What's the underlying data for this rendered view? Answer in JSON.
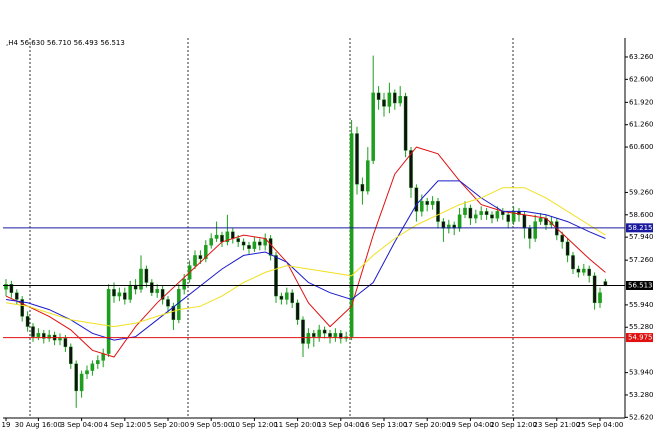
{
  "chart_data": {
    "type": "candlestick",
    "title": ",H4  56.630 56.710 56.493 56.513",
    "categories": [
      "19",
      null,
      null,
      null,
      null,
      null,
      "30 Aug 16:00",
      null,
      null,
      null,
      null,
      null,
      null,
      null,
      "3 Sep 04:00",
      null,
      null,
      null,
      null,
      null,
      null,
      null,
      "4 Sep 12:00",
      null,
      null,
      null,
      null,
      null,
      null,
      null,
      "5 Sep 20:00",
      null,
      null,
      null,
      null,
      null,
      null,
      null,
      "9 Sep 05:00",
      null,
      null,
      null,
      null,
      null,
      null,
      null,
      "10 Sep 12:00",
      null,
      null,
      null,
      null,
      null,
      null,
      null,
      "11 Sep 20:00",
      null,
      null,
      null,
      null,
      null,
      null,
      null,
      "13 Sep 04:00",
      null,
      null,
      null,
      null,
      null,
      null,
      null,
      "16 Sep 13:00",
      null,
      null,
      null,
      null,
      null,
      null,
      null,
      "17 Sep 20:00",
      null,
      null,
      null,
      null,
      null,
      null,
      null,
      "19 Sep 04:00",
      null,
      null,
      null,
      null,
      null,
      null,
      null,
      "20 Sep 12:00",
      null,
      null,
      null,
      null,
      null,
      null,
      null,
      "23 Sep 21:00",
      null,
      null,
      null,
      null,
      null,
      null,
      null,
      "25 Sep 04:00",
      null
    ],
    "open": [
      56.4,
      56.55,
      56.3,
      56.1,
      55.6,
      55.3,
      55.0,
      55.1,
      54.95,
      55.05,
      54.9,
      54.95,
      54.7,
      54.2,
      53.4,
      53.9,
      54.0,
      54.2,
      54.3,
      54.5,
      56.4,
      56.2,
      56.3,
      56.1,
      56.5,
      56.4,
      57.0,
      56.6,
      56.3,
      56.4,
      56.1,
      55.9,
      55.5,
      56.4,
      56.7,
      57.1,
      57.4,
      57.3,
      57.7,
      57.9,
      58.0,
      57.8,
      58.1,
      57.9,
      57.8,
      57.7,
      57.6,
      57.8,
      57.7,
      57.9,
      57.4,
      56.2,
      56.1,
      56.3,
      56.0,
      55.5,
      54.8,
      55.1,
      55.0,
      55.2,
      55.1,
      55.0,
      55.1,
      54.95,
      55.0,
      61.0,
      59.5,
      59.3,
      60.2,
      62.2,
      62.0,
      61.8,
      62.2,
      61.9,
      62.1,
      60.5,
      59.4,
      58.7,
      59.0,
      58.9,
      59.0,
      58.4,
      58.2,
      58.3,
      58.2,
      58.6,
      58.8,
      58.5,
      58.6,
      58.7,
      58.6,
      58.5,
      58.7,
      58.6,
      58.4,
      58.7,
      58.6,
      58.2,
      57.9,
      58.4,
      58.5,
      58.3,
      58.4,
      58.0,
      57.8,
      57.4,
      57.0,
      56.9,
      57.0,
      56.8,
      56.0,
      56.63
    ],
    "high": [
      56.7,
      56.65,
      56.4,
      56.2,
      55.75,
      55.4,
      55.25,
      55.2,
      55.2,
      55.15,
      55.1,
      55.05,
      54.8,
      54.3,
      54.0,
      54.15,
      54.3,
      54.45,
      54.65,
      56.55,
      56.6,
      56.45,
      56.45,
      56.65,
      56.7,
      57.4,
      57.1,
      56.7,
      56.55,
      56.5,
      56.2,
      56.0,
      56.55,
      56.85,
      57.25,
      57.55,
      57.55,
      57.85,
      58.05,
      58.4,
      58.1,
      58.6,
      58.2,
      58.0,
      57.9,
      57.8,
      57.95,
      57.9,
      58.05,
      58.0,
      57.5,
      56.3,
      56.45,
      56.4,
      56.1,
      55.6,
      55.25,
      55.2,
      55.35,
      55.3,
      55.2,
      55.25,
      55.2,
      55.15,
      61.4,
      61.2,
      59.7,
      60.6,
      63.3,
      62.4,
      62.2,
      62.5,
      62.3,
      62.4,
      62.2,
      60.6,
      59.5,
      59.2,
      59.1,
      59.15,
      59.1,
      58.5,
      58.45,
      58.4,
      58.8,
      59.0,
      58.9,
      58.75,
      58.85,
      58.8,
      58.7,
      58.85,
      58.8,
      58.7,
      58.85,
      58.8,
      58.7,
      58.3,
      58.6,
      58.65,
      58.6,
      58.55,
      58.5,
      58.1,
      57.9,
      57.5,
      57.1,
      57.15,
      57.1,
      56.9,
      56.45,
      56.71
    ],
    "low": [
      56.2,
      56.15,
      55.95,
      55.45,
      55.15,
      54.85,
      54.9,
      54.8,
      54.85,
      54.75,
      54.75,
      54.55,
      54.05,
      52.9,
      53.2,
      53.75,
      53.85,
      54.05,
      54.1,
      54.4,
      56.0,
      56.05,
      55.95,
      56.0,
      56.25,
      56.3,
      56.45,
      56.2,
      56.15,
      55.95,
      55.7,
      55.2,
      55.4,
      56.25,
      56.6,
      57.0,
      57.15,
      57.2,
      57.6,
      57.8,
      57.65,
      57.7,
      57.75,
      57.65,
      57.55,
      57.45,
      57.5,
      57.55,
      57.55,
      57.25,
      56.0,
      55.95,
      55.95,
      55.85,
      55.35,
      54.4,
      54.65,
      54.7,
      54.85,
      54.95,
      54.8,
      54.85,
      54.8,
      54.85,
      54.9,
      59.2,
      58.9,
      59.2,
      60.1,
      61.7,
      61.5,
      61.6,
      61.7,
      61.8,
      60.3,
      59.1,
      58.4,
      58.55,
      58.7,
      58.75,
      58.2,
      57.8,
      58.05,
      58.0,
      58.1,
      58.5,
      58.3,
      58.35,
      58.45,
      58.45,
      58.35,
      58.4,
      58.45,
      58.2,
      58.3,
      58.4,
      57.9,
      57.6,
      57.8,
      58.3,
      58.15,
      58.2,
      57.85,
      57.6,
      57.2,
      56.85,
      56.75,
      56.8,
      56.6,
      55.8,
      55.85,
      56.493
    ],
    "close": [
      56.55,
      56.3,
      56.1,
      55.6,
      55.3,
      55.0,
      55.1,
      54.95,
      55.05,
      54.9,
      54.95,
      54.7,
      54.2,
      53.4,
      53.9,
      54.0,
      54.2,
      54.3,
      54.5,
      56.4,
      56.2,
      56.3,
      56.1,
      56.5,
      56.4,
      57.0,
      56.6,
      56.3,
      56.4,
      56.1,
      55.9,
      55.5,
      56.4,
      56.7,
      57.1,
      57.4,
      57.3,
      57.7,
      57.9,
      58.0,
      57.8,
      58.1,
      57.9,
      57.8,
      57.7,
      57.6,
      57.8,
      57.7,
      57.9,
      57.4,
      56.2,
      56.1,
      56.3,
      56.0,
      55.5,
      54.8,
      55.1,
      55.0,
      55.2,
      55.1,
      55.0,
      55.1,
      54.95,
      55.0,
      61.0,
      59.5,
      59.3,
      60.2,
      62.2,
      62.0,
      61.8,
      62.2,
      61.9,
      62.1,
      60.5,
      59.4,
      58.7,
      59.0,
      58.9,
      59.0,
      58.4,
      58.2,
      58.3,
      58.2,
      58.6,
      58.8,
      58.5,
      58.6,
      58.7,
      58.6,
      58.5,
      58.7,
      58.6,
      58.4,
      58.7,
      58.6,
      58.2,
      57.9,
      58.4,
      58.5,
      58.3,
      58.4,
      58.0,
      57.8,
      57.4,
      57.0,
      56.9,
      57.0,
      56.8,
      56.0,
      56.3,
      56.513
    ],
    "bull_color": "#1e9e1e",
    "bear_color": "#111111",
    "wick_color": "#1e9e1e",
    "series": [
      {
        "color": "#e01010",
        "x": [
          0,
          4,
          8,
          12,
          16,
          20,
          24,
          28,
          32,
          36,
          40,
          44,
          48,
          52,
          56,
          60,
          64,
          68,
          72,
          76,
          80,
          84,
          88,
          92,
          96,
          100,
          104,
          108,
          111
        ],
        "values": [
          56.2,
          55.9,
          55.6,
          55.2,
          54.6,
          54.4,
          55.3,
          56.0,
          56.6,
          57.2,
          57.8,
          58.0,
          57.9,
          57.2,
          56.0,
          55.3,
          55.9,
          58.0,
          59.8,
          60.6,
          60.4,
          59.6,
          58.9,
          58.7,
          58.6,
          58.5,
          57.9,
          57.3,
          56.9
        ]
      },
      {
        "color": "#1a1acc",
        "x": [
          0,
          4,
          8,
          12,
          16,
          20,
          24,
          28,
          32,
          36,
          40,
          44,
          48,
          52,
          56,
          60,
          64,
          68,
          72,
          76,
          80,
          84,
          88,
          92,
          96,
          100,
          104,
          108,
          111
        ],
        "values": [
          56.1,
          56.0,
          55.8,
          55.5,
          55.1,
          54.9,
          55.0,
          55.5,
          56.0,
          56.5,
          57.0,
          57.4,
          57.5,
          57.2,
          56.6,
          56.3,
          56.1,
          56.6,
          57.8,
          58.9,
          59.6,
          59.6,
          59.1,
          58.7,
          58.7,
          58.6,
          58.4,
          58.1,
          57.9
        ]
      },
      {
        "color": "#f0e020",
        "x": [
          0,
          4,
          8,
          12,
          16,
          20,
          24,
          28,
          32,
          36,
          40,
          44,
          48,
          52,
          56,
          60,
          64,
          68,
          72,
          76,
          80,
          84,
          88,
          92,
          96,
          100,
          104,
          108,
          111
        ],
        "values": [
          56.0,
          55.9,
          55.7,
          55.5,
          55.4,
          55.3,
          55.4,
          55.6,
          55.8,
          55.9,
          56.2,
          56.6,
          56.9,
          57.1,
          57.0,
          56.9,
          56.8,
          57.4,
          57.9,
          58.3,
          58.6,
          58.9,
          59.1,
          59.4,
          59.4,
          59.1,
          58.7,
          58.3,
          58.0
        ]
      }
    ],
    "hlines": [
      {
        "value": 58.215,
        "color": "#1a1aa0"
      },
      {
        "value": 56.513,
        "color": "#000000"
      },
      {
        "value": 54.975,
        "color": "#e01010"
      }
    ],
    "ylim": [
      52.6,
      63.82
    ],
    "yticks": [
      {
        "value": 63.26,
        "label": "63.260"
      },
      {
        "value": 62.6,
        "label": "62.600"
      },
      {
        "value": 61.92,
        "label": "61.920"
      },
      {
        "value": 61.26,
        "label": "61.260"
      },
      {
        "value": 60.6,
        "label": "60.600"
      },
      {
        "value": 59.26,
        "label": "59.260"
      },
      {
        "value": 58.6,
        "label": "58.600"
      },
      {
        "value": 57.94,
        "label": "57.940"
      },
      {
        "value": 57.26,
        "label": "57.260"
      },
      {
        "value": 55.94,
        "label": "55.940"
      },
      {
        "value": 55.28,
        "label": "55.280"
      },
      {
        "value": 53.94,
        "label": "53.940"
      },
      {
        "value": 53.28,
        "label": "53.280"
      },
      {
        "value": 52.62,
        "label": "52.620"
      }
    ]
  }
}
